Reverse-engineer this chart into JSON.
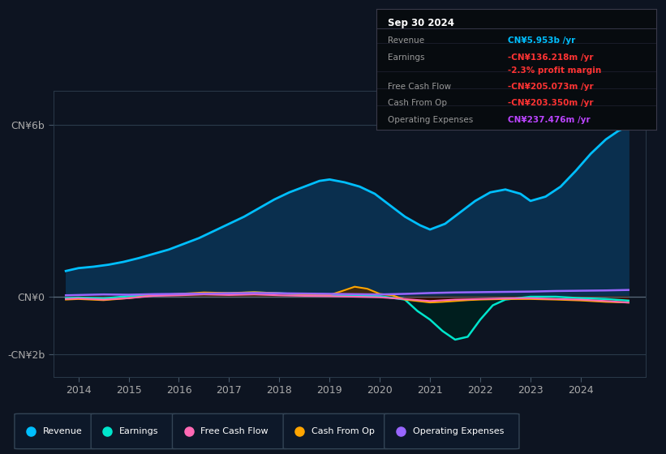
{
  "bg_color": "#0d1421",
  "yticks": [
    -2000000000,
    0,
    6000000000
  ],
  "ytick_labels": [
    "-CN¥2b",
    "CN¥0",
    "CN¥6b"
  ],
  "xlim": [
    2013.5,
    2025.3
  ],
  "ylim": [
    -2800000000,
    7200000000
  ],
  "xticks": [
    2014,
    2015,
    2016,
    2017,
    2018,
    2019,
    2020,
    2021,
    2022,
    2023,
    2024
  ],
  "info_date": "Sep 30 2024",
  "info_rows": [
    {
      "label": "Revenue",
      "value": "CN¥5.953b /yr",
      "vc": "#00bfff"
    },
    {
      "label": "Earnings",
      "value": "-CN¥136.218m /yr",
      "vc": "#ff3333"
    },
    {
      "label": "",
      "value": "-2.3% profit margin",
      "vc": "#ff3333"
    },
    {
      "label": "Free Cash Flow",
      "value": "-CN¥205.073m /yr",
      "vc": "#ff3333"
    },
    {
      "label": "Cash From Op",
      "value": "-CN¥203.350m /yr",
      "vc": "#ff3333"
    },
    {
      "label": "Operating Expenses",
      "value": "CN¥237.476m /yr",
      "vc": "#bb44ff"
    }
  ],
  "legend": [
    {
      "label": "Revenue",
      "color": "#00bfff"
    },
    {
      "label": "Earnings",
      "color": "#00e5cc"
    },
    {
      "label": "Free Cash Flow",
      "color": "#ff69b4"
    },
    {
      "label": "Cash From Op",
      "color": "#ffa500"
    },
    {
      "label": "Operating Expenses",
      "color": "#9966ff"
    }
  ],
  "rev_x": [
    2013.75,
    2014.0,
    2014.3,
    2014.6,
    2014.9,
    2015.2,
    2015.5,
    2015.8,
    2016.1,
    2016.4,
    2016.7,
    2017.0,
    2017.3,
    2017.6,
    2017.9,
    2018.2,
    2018.5,
    2018.8,
    2019.0,
    2019.3,
    2019.6,
    2019.9,
    2020.2,
    2020.5,
    2020.8,
    2021.0,
    2021.3,
    2021.6,
    2021.9,
    2022.2,
    2022.5,
    2022.8,
    2023.0,
    2023.3,
    2023.6,
    2023.9,
    2024.2,
    2024.5,
    2024.75,
    2024.95
  ],
  "rev_y": [
    0.9,
    1.0,
    1.05,
    1.12,
    1.22,
    1.35,
    1.5,
    1.65,
    1.85,
    2.05,
    2.3,
    2.55,
    2.8,
    3.1,
    3.4,
    3.65,
    3.85,
    4.05,
    4.1,
    4.0,
    3.85,
    3.6,
    3.2,
    2.8,
    2.5,
    2.35,
    2.55,
    2.95,
    3.35,
    3.65,
    3.75,
    3.6,
    3.35,
    3.5,
    3.85,
    4.4,
    5.0,
    5.5,
    5.8,
    5.953
  ],
  "earn_x": [
    2013.75,
    2014.0,
    2014.5,
    2015.0,
    2015.5,
    2016.0,
    2016.5,
    2017.0,
    2017.5,
    2018.0,
    2018.5,
    2019.0,
    2019.5,
    2020.0,
    2020.5,
    2020.75,
    2021.0,
    2021.25,
    2021.5,
    2021.75,
    2022.0,
    2022.25,
    2022.5,
    2022.75,
    2023.0,
    2023.5,
    2024.0,
    2024.5,
    2024.95
  ],
  "earn_y": [
    -0.05,
    -0.03,
    -0.06,
    0.02,
    0.05,
    0.08,
    0.1,
    0.12,
    0.15,
    0.12,
    0.08,
    0.06,
    0.03,
    0.02,
    -0.1,
    -0.5,
    -0.8,
    -1.2,
    -1.5,
    -1.4,
    -0.8,
    -0.3,
    -0.1,
    -0.05,
    0.0,
    0.0,
    -0.05,
    -0.08,
    -0.136
  ],
  "fcf_x": [
    2013.75,
    2014.0,
    2014.5,
    2015.0,
    2015.5,
    2016.0,
    2016.5,
    2017.0,
    2017.5,
    2018.0,
    2018.5,
    2019.0,
    2019.5,
    2020.0,
    2020.5,
    2021.0,
    2021.5,
    2022.0,
    2022.5,
    2023.0,
    2023.5,
    2024.0,
    2024.5,
    2024.95
  ],
  "fcf_y": [
    -0.08,
    -0.06,
    -0.1,
    -0.05,
    0.03,
    0.05,
    0.08,
    0.06,
    0.08,
    0.05,
    0.03,
    0.02,
    0.0,
    -0.02,
    -0.08,
    -0.15,
    -0.1,
    -0.08,
    -0.06,
    -0.05,
    -0.08,
    -0.1,
    -0.15,
    -0.205
  ],
  "cop_x": [
    2013.75,
    2014.0,
    2014.5,
    2015.0,
    2015.5,
    2016.0,
    2016.5,
    2017.0,
    2017.5,
    2018.0,
    2018.5,
    2019.0,
    2019.25,
    2019.5,
    2019.75,
    2020.0,
    2020.25,
    2020.5,
    2020.75,
    2021.0,
    2021.25,
    2021.5,
    2021.75,
    2022.0,
    2022.5,
    2023.0,
    2023.5,
    2024.0,
    2024.5,
    2024.95
  ],
  "cop_y": [
    -0.1,
    -0.08,
    -0.12,
    -0.05,
    0.05,
    0.1,
    0.15,
    0.13,
    0.16,
    0.12,
    0.08,
    0.06,
    0.2,
    0.35,
    0.28,
    0.1,
    0.05,
    -0.1,
    -0.15,
    -0.2,
    -0.18,
    -0.15,
    -0.12,
    -0.1,
    -0.08,
    -0.08,
    -0.1,
    -0.13,
    -0.18,
    -0.203
  ],
  "ope_x": [
    2013.75,
    2014.0,
    2014.5,
    2015.0,
    2015.5,
    2016.0,
    2016.5,
    2017.0,
    2017.5,
    2018.0,
    2018.5,
    2019.0,
    2019.5,
    2020.0,
    2020.5,
    2021.0,
    2021.5,
    2022.0,
    2022.5,
    2023.0,
    2023.5,
    2024.0,
    2024.5,
    2024.95
  ],
  "ope_y": [
    0.05,
    0.06,
    0.08,
    0.07,
    0.09,
    0.1,
    0.11,
    0.12,
    0.13,
    0.12,
    0.11,
    0.1,
    0.09,
    0.08,
    0.1,
    0.13,
    0.15,
    0.16,
    0.17,
    0.18,
    0.2,
    0.21,
    0.22,
    0.237
  ]
}
